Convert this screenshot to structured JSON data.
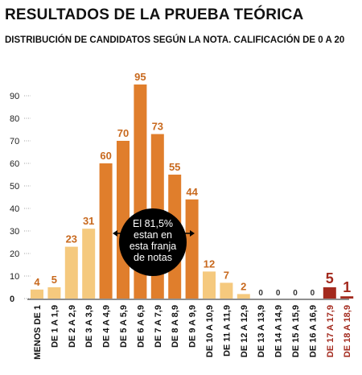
{
  "chart_data": {
    "type": "bar",
    "title": "RESULTADOS DE LA PRUEBA TEÓRICA",
    "subtitle": "DISTRIBUCIÓN DE CANDIDATOS SEGÚN LA NOTA. CALIFICACIÓN DE 0 A 20",
    "categories": [
      "MENOS DE 1",
      "DE 1 A 1,9",
      "DE 2 A 2,9",
      "DE 3 A 3,9",
      "DE 4 A 4,9",
      "DE 5 A 5,9",
      "DE 6 A 6,9",
      "DE 7 A 7,9",
      "DE 8 A 8,9",
      "DE 9 A 9,9",
      "DE 10 A 10,9",
      "DE 11 A 11,9",
      "DE 12 A 12,9",
      "DE 13 A 13,9",
      "DE 14 A 14,9",
      "DE 15 A 15,9",
      "DE 16 A 16,9",
      "DE 17 A 17,9",
      "DE 18 A 18,9"
    ],
    "values": [
      4,
      5,
      23,
      31,
      60,
      70,
      95,
      73,
      55,
      44,
      12,
      7,
      2,
      0,
      0,
      0,
      0,
      5,
      1
    ],
    "value_labels": [
      "4",
      "5",
      "23",
      "31",
      "60",
      "70",
      "95",
      "73",
      "55",
      "44",
      "12",
      "7",
      "2",
      "0",
      "0",
      "0",
      "0",
      "5",
      "1"
    ],
    "groups": [
      "light",
      "light",
      "light",
      "light",
      "mid",
      "mid",
      "mid",
      "mid",
      "mid",
      "mid",
      "light",
      "light",
      "light",
      "light",
      "light",
      "light",
      "light",
      "top",
      "top"
    ],
    "yticks": [
      0,
      10,
      20,
      30,
      40,
      50,
      60,
      70,
      80,
      90
    ],
    "ylim": [
      0,
      100
    ],
    "annotation": [
      "El 81,5%",
      "estan en",
      "esta franja",
      "de notas"
    ],
    "grid": false,
    "colors": {
      "light": "#f5c97e",
      "mid": "#e07e2c",
      "top": "#a32a1e",
      "label_light": "#c8691e",
      "label_mid": "#c8691e",
      "label_top": "#a32a1e",
      "label_zero": "#333333",
      "annotation_bg": "#000000",
      "annotation_text": "#ffffff"
    }
  }
}
